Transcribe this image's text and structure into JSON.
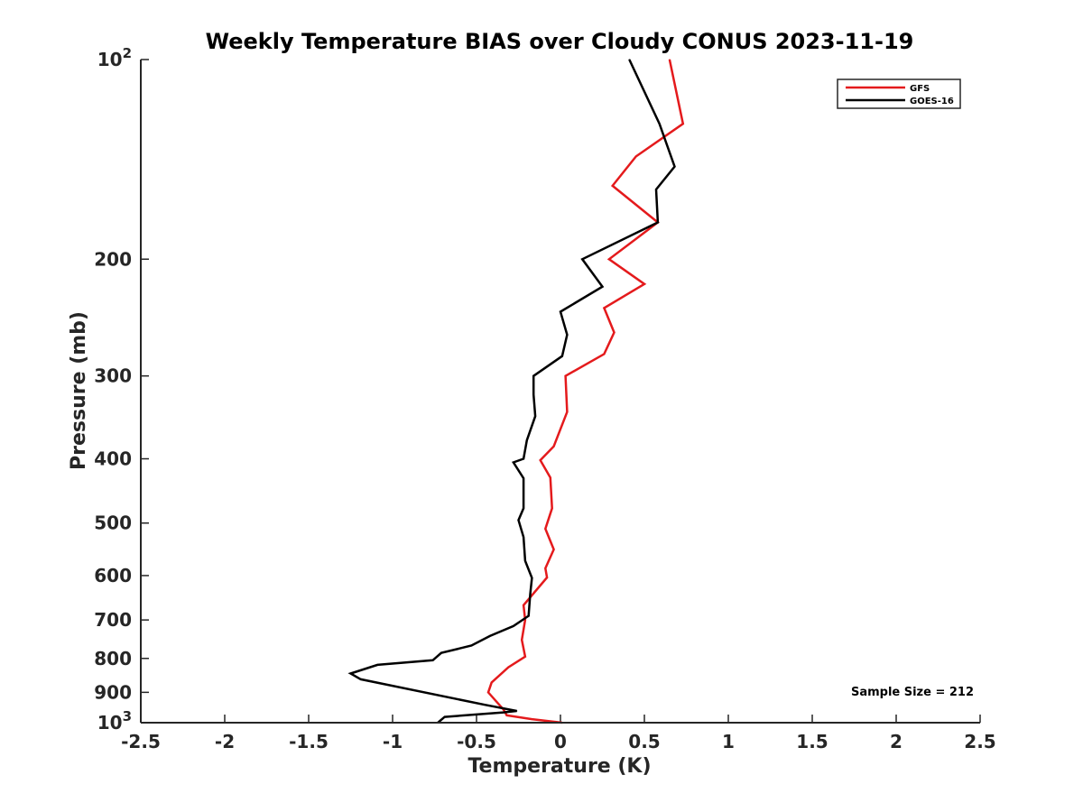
{
  "chart_data": {
    "type": "line",
    "title": "Weekly Temperature BIAS over Cloudy CONUS 2023-11-19",
    "xlabel": "Temperature (K)",
    "ylabel": "Pressure (mb)",
    "xlim": [
      -2.5,
      2.5
    ],
    "ylim": [
      100,
      1000
    ],
    "y_scale": "log",
    "y_reversed": true,
    "grid": false,
    "legend_position": "top-right",
    "x_ticks": [
      "-2.5",
      "-2",
      "-1.5",
      "-1",
      "-0.5",
      "0",
      "0.5",
      "1",
      "1.5",
      "2",
      "2.5"
    ],
    "y_ticks": [
      {
        "value": 100,
        "base": "10",
        "exp": "2"
      },
      {
        "value": 200,
        "label": "200"
      },
      {
        "value": 300,
        "label": "300"
      },
      {
        "value": 400,
        "label": "400"
      },
      {
        "value": 500,
        "label": "500"
      },
      {
        "value": 600,
        "label": "600"
      },
      {
        "value": 700,
        "label": "700"
      },
      {
        "value": 800,
        "label": "800"
      },
      {
        "value": 900,
        "label": "900"
      },
      {
        "value": 1000,
        "base": "10",
        "exp": "3"
      }
    ],
    "annotation": "Sample Size = 212",
    "series": [
      {
        "name": "GFS",
        "color": "#e41a1c",
        "points": [
          {
            "x": 0.65,
            "y": 100
          },
          {
            "x": 0.73,
            "y": 125
          },
          {
            "x": 0.45,
            "y": 140
          },
          {
            "x": 0.31,
            "y": 155
          },
          {
            "x": 0.58,
            "y": 176
          },
          {
            "x": 0.29,
            "y": 200
          },
          {
            "x": 0.5,
            "y": 218
          },
          {
            "x": 0.26,
            "y": 237
          },
          {
            "x": 0.32,
            "y": 258
          },
          {
            "x": 0.26,
            "y": 278
          },
          {
            "x": 0.03,
            "y": 300
          },
          {
            "x": 0.04,
            "y": 340
          },
          {
            "x": -0.04,
            "y": 383
          },
          {
            "x": -0.12,
            "y": 402
          },
          {
            "x": -0.06,
            "y": 427
          },
          {
            "x": -0.05,
            "y": 475
          },
          {
            "x": -0.09,
            "y": 510
          },
          {
            "x": -0.04,
            "y": 548
          },
          {
            "x": -0.09,
            "y": 585
          },
          {
            "x": -0.08,
            "y": 604
          },
          {
            "x": -0.22,
            "y": 665
          },
          {
            "x": -0.21,
            "y": 700
          },
          {
            "x": -0.23,
            "y": 750
          },
          {
            "x": -0.21,
            "y": 795
          },
          {
            "x": -0.31,
            "y": 825
          },
          {
            "x": -0.41,
            "y": 870
          },
          {
            "x": -0.43,
            "y": 900
          },
          {
            "x": -0.34,
            "y": 955
          },
          {
            "x": -0.32,
            "y": 975
          },
          {
            "x": -0.17,
            "y": 988
          },
          {
            "x": 0.01,
            "y": 1000
          }
        ]
      },
      {
        "name": "GOES-16",
        "color": "#000000",
        "points": [
          {
            "x": 0.41,
            "y": 100
          },
          {
            "x": 0.59,
            "y": 125
          },
          {
            "x": 0.68,
            "y": 145
          },
          {
            "x": 0.57,
            "y": 157
          },
          {
            "x": 0.58,
            "y": 176
          },
          {
            "x": 0.13,
            "y": 200
          },
          {
            "x": 0.25,
            "y": 220
          },
          {
            "x": 0.0,
            "y": 240
          },
          {
            "x": 0.04,
            "y": 260
          },
          {
            "x": 0.01,
            "y": 280
          },
          {
            "x": -0.16,
            "y": 300
          },
          {
            "x": -0.16,
            "y": 320
          },
          {
            "x": -0.15,
            "y": 345
          },
          {
            "x": -0.2,
            "y": 375
          },
          {
            "x": -0.22,
            "y": 400
          },
          {
            "x": -0.28,
            "y": 405
          },
          {
            "x": -0.22,
            "y": 428
          },
          {
            "x": -0.22,
            "y": 475
          },
          {
            "x": -0.25,
            "y": 495
          },
          {
            "x": -0.22,
            "y": 525
          },
          {
            "x": -0.21,
            "y": 570
          },
          {
            "x": -0.17,
            "y": 605
          },
          {
            "x": -0.18,
            "y": 640
          },
          {
            "x": -0.19,
            "y": 690
          },
          {
            "x": -0.28,
            "y": 715
          },
          {
            "x": -0.42,
            "y": 740
          },
          {
            "x": -0.53,
            "y": 765
          },
          {
            "x": -0.71,
            "y": 785
          },
          {
            "x": -0.76,
            "y": 805
          },
          {
            "x": -1.09,
            "y": 818
          },
          {
            "x": -1.25,
            "y": 843
          },
          {
            "x": -1.19,
            "y": 860
          },
          {
            "x": -0.45,
            "y": 940
          },
          {
            "x": -0.26,
            "y": 960
          },
          {
            "x": -0.34,
            "y": 965
          },
          {
            "x": -0.69,
            "y": 980
          },
          {
            "x": -0.73,
            "y": 1000
          }
        ]
      }
    ]
  }
}
